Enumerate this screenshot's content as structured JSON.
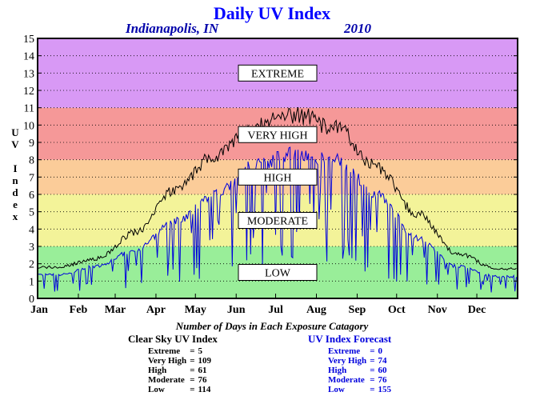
{
  "header": {
    "title": "Daily UV Index",
    "location": "Indianapolis, IN",
    "year": "2010"
  },
  "chart_data": {
    "type": "line",
    "title": "Daily UV Index",
    "ylabel": "UV Index",
    "ylim": [
      0,
      15
    ],
    "yticks": [
      "0",
      "1",
      "2",
      "3",
      "4",
      "5",
      "6",
      "7",
      "8",
      "9",
      "10",
      "11",
      "12",
      "13",
      "14",
      "15"
    ],
    "x_ticks": [
      "Jan",
      "Feb",
      "Mar",
      "Apr",
      "May",
      "Jun",
      "Jul",
      "Aug",
      "Sep",
      "Oct",
      "Nov",
      "Dec"
    ],
    "grid": true,
    "bands": [
      {
        "label": "LOW",
        "from": 0,
        "to": 3,
        "color": "#99ee99"
      },
      {
        "label": "MODERATE",
        "from": 3,
        "to": 6,
        "color": "#f3f399"
      },
      {
        "label": "HIGH",
        "from": 6,
        "to": 8,
        "color": "#fbcc99"
      },
      {
        "label": "VERY HIGH",
        "from": 8,
        "to": 11,
        "color": "#f59898"
      },
      {
        "label": "EXTREME",
        "from": 11,
        "to": 15,
        "color": "#d899f5"
      }
    ],
    "series": [
      {
        "name": "Clear Sky UV Index",
        "color": "#000000",
        "months": [
          "Jan",
          "Feb",
          "Mar",
          "Apr",
          "May",
          "Jun",
          "Jul",
          "Aug",
          "Sep",
          "Oct",
          "Nov",
          "Dec"
        ],
        "values": [
          1.8,
          2.3,
          3.8,
          6.3,
          8.3,
          10.0,
          10.6,
          9.8,
          7.6,
          4.9,
          2.6,
          1.7
        ]
      },
      {
        "name": "UV Index Forecast",
        "color": "#0000dd",
        "months": [
          "Jan",
          "Feb",
          "Mar",
          "Apr",
          "May",
          "Jun",
          "Jul",
          "Aug",
          "Sep",
          "Oct",
          "Nov",
          "Dec"
        ],
        "values": [
          1.4,
          1.9,
          2.9,
          4.6,
          6.2,
          8.0,
          8.6,
          8.2,
          6.2,
          3.6,
          1.9,
          1.3
        ]
      }
    ]
  },
  "stats": {
    "subtitle": "Number of Days in Each Exposure Catagory",
    "clear": {
      "header": "Clear Sky UV Index",
      "rows": [
        {
          "label": "Extreme",
          "value": "5"
        },
        {
          "label": "Very High",
          "value": "109"
        },
        {
          "label": "High",
          "value": "61"
        },
        {
          "label": "Moderate",
          "value": "76"
        },
        {
          "label": "Low",
          "value": "114"
        }
      ]
    },
    "forecast": {
      "header": "UV Index Forecast",
      "rows": [
        {
          "label": "Extreme",
          "value": "0"
        },
        {
          "label": "Very High",
          "value": "74"
        },
        {
          "label": "High",
          "value": "60"
        },
        {
          "label": "Moderate",
          "value": "76"
        },
        {
          "label": "Low",
          "value": "155"
        }
      ]
    }
  }
}
